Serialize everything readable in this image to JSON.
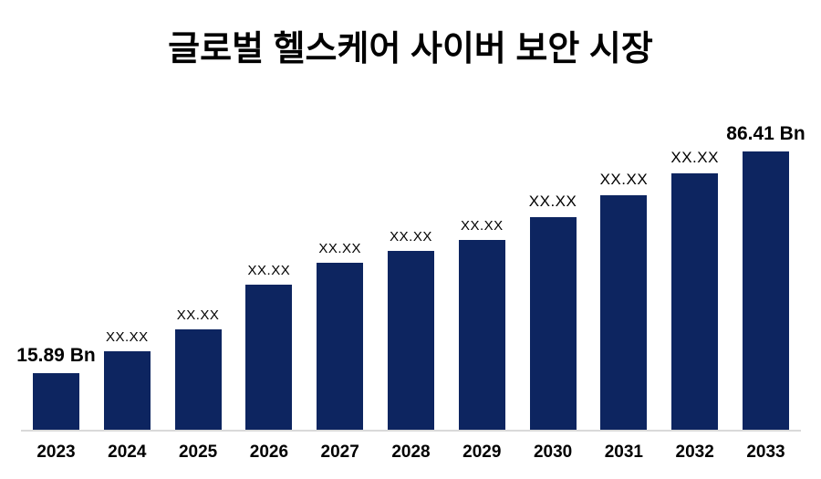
{
  "chart_data": {
    "type": "bar",
    "title": "글로벌 헬스케어 사이버 보안 시장",
    "xlabel": "",
    "ylabel": "",
    "grid": false,
    "legend": false,
    "categories": [
      "2023",
      "2024",
      "2025",
      "2026",
      "2027",
      "2028",
      "2029",
      "2030",
      "2031",
      "2032",
      "2033"
    ],
    "values": [
      15.89,
      null,
      null,
      null,
      null,
      null,
      null,
      null,
      null,
      null,
      86.41
    ],
    "bar_labels": [
      "15.89 Bn",
      "XX.XX",
      "XX.XX",
      "XX.XX",
      "XX.XX",
      "XX.XX",
      "XX.XX",
      "XX.XX",
      "XX.XX",
      "XX.XX",
      "86.41 Bn"
    ],
    "label_style": [
      "large",
      "small",
      "small",
      "small",
      "small",
      "small",
      "small",
      "medium",
      "medium",
      "medium",
      "large"
    ],
    "relative_heights": [
      0.203,
      0.282,
      0.361,
      0.521,
      0.6,
      0.643,
      0.682,
      0.764,
      0.843,
      0.921,
      1.0
    ],
    "value_unit": "Bn"
  },
  "colors": {
    "bar": "#0d2560",
    "title_text": "#000000",
    "label_text": "#000000",
    "axis_line": "#d9d9d9",
    "background": "#ffffff"
  }
}
